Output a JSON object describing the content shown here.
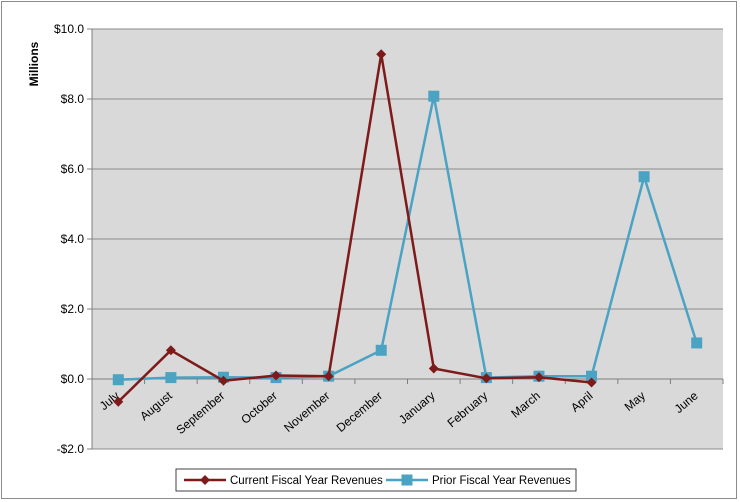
{
  "chart_data": {
    "type": "line",
    "ylabel": "Millions",
    "ylim": [
      -2,
      10
    ],
    "yticks": [
      -2,
      0,
      2,
      4,
      6,
      8,
      10
    ],
    "ytick_labels": [
      "-$2.0",
      "$0.0",
      "$2.0",
      "$4.0",
      "$6.0",
      "$8.0",
      "$10.0"
    ],
    "categories": [
      "July",
      "August",
      "September",
      "October",
      "November",
      "December",
      "January",
      "February",
      "March",
      "April",
      "May",
      "June"
    ],
    "grid": true,
    "legend_position": "bottom",
    "background_color": "#d9d9d9",
    "series": [
      {
        "name": "Current Fiscal Year Revenues",
        "color": "#7f1a1a",
        "marker": "diamond",
        "values": [
          -0.65,
          0.82,
          -0.05,
          0.1,
          0.08,
          9.28,
          0.3,
          0.02,
          0.05,
          -0.1,
          null,
          null
        ]
      },
      {
        "name": "Prior Fiscal Year Revenues",
        "color": "#4ba3c3",
        "marker": "square",
        "values": [
          -0.02,
          0.04,
          0.05,
          0.04,
          0.08,
          0.82,
          8.08,
          0.04,
          0.08,
          0.08,
          5.78,
          1.03
        ]
      }
    ]
  }
}
